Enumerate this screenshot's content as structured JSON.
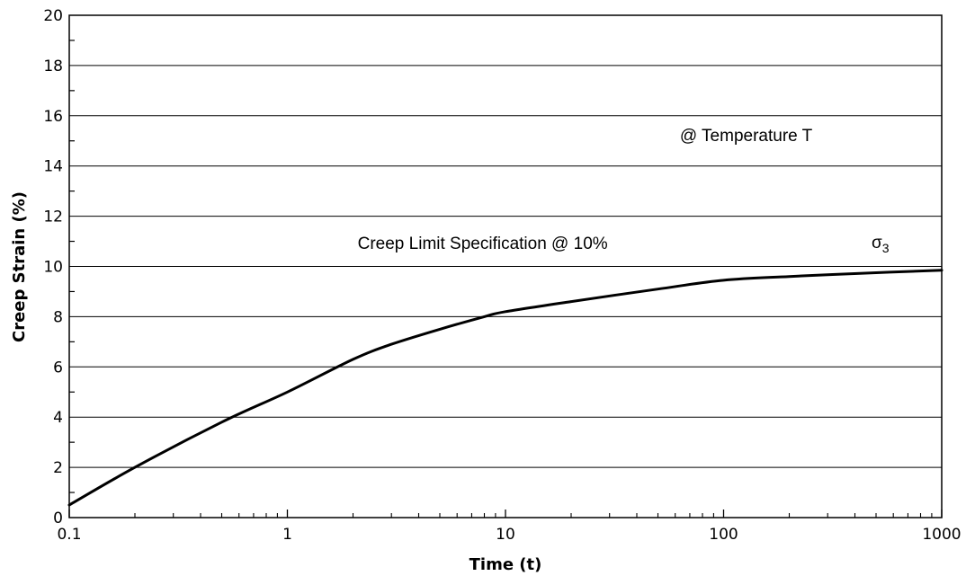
{
  "chart_data": {
    "type": "line",
    "title": "",
    "xlabel": "Time (t)",
    "ylabel": "Creep Strain (%)",
    "xscale": "log",
    "xlim": [
      0.1,
      1000
    ],
    "ylim": [
      0,
      20
    ],
    "x_ticks": [
      "0.1",
      "1",
      "10",
      "100",
      "1000"
    ],
    "y_ticks": [
      "0",
      "2",
      "4",
      "6",
      "8",
      "10",
      "12",
      "14",
      "16",
      "18",
      "20"
    ],
    "grid": "horizontal",
    "legend": "none",
    "series": [
      {
        "label": {
          "base": "σ",
          "sub": "3"
        },
        "color": "#000000",
        "points": [
          {
            "x": 0.1,
            "y": 0.5
          },
          {
            "x": 0.2,
            "y": 2.0
          },
          {
            "x": 0.5,
            "y": 3.8
          },
          {
            "x": 1,
            "y": 5.0
          },
          {
            "x": 2,
            "y": 6.3
          },
          {
            "x": 3,
            "y": 6.9
          },
          {
            "x": 5,
            "y": 7.5
          },
          {
            "x": 8,
            "y": 8.0
          },
          {
            "x": 10,
            "y": 8.2
          },
          {
            "x": 20,
            "y": 8.6
          },
          {
            "x": 50,
            "y": 9.1
          },
          {
            "x": 100,
            "y": 9.45
          },
          {
            "x": 200,
            "y": 9.6
          },
          {
            "x": 500,
            "y": 9.75
          },
          {
            "x": 1000,
            "y": 9.85
          }
        ]
      }
    ],
    "annotations": [
      {
        "text": "@ Temperature T",
        "x": 63,
        "y": 15.0
      },
      {
        "text": "Creep Limit Specification @ 10%",
        "x": 2.1,
        "y": 10.7
      }
    ]
  }
}
